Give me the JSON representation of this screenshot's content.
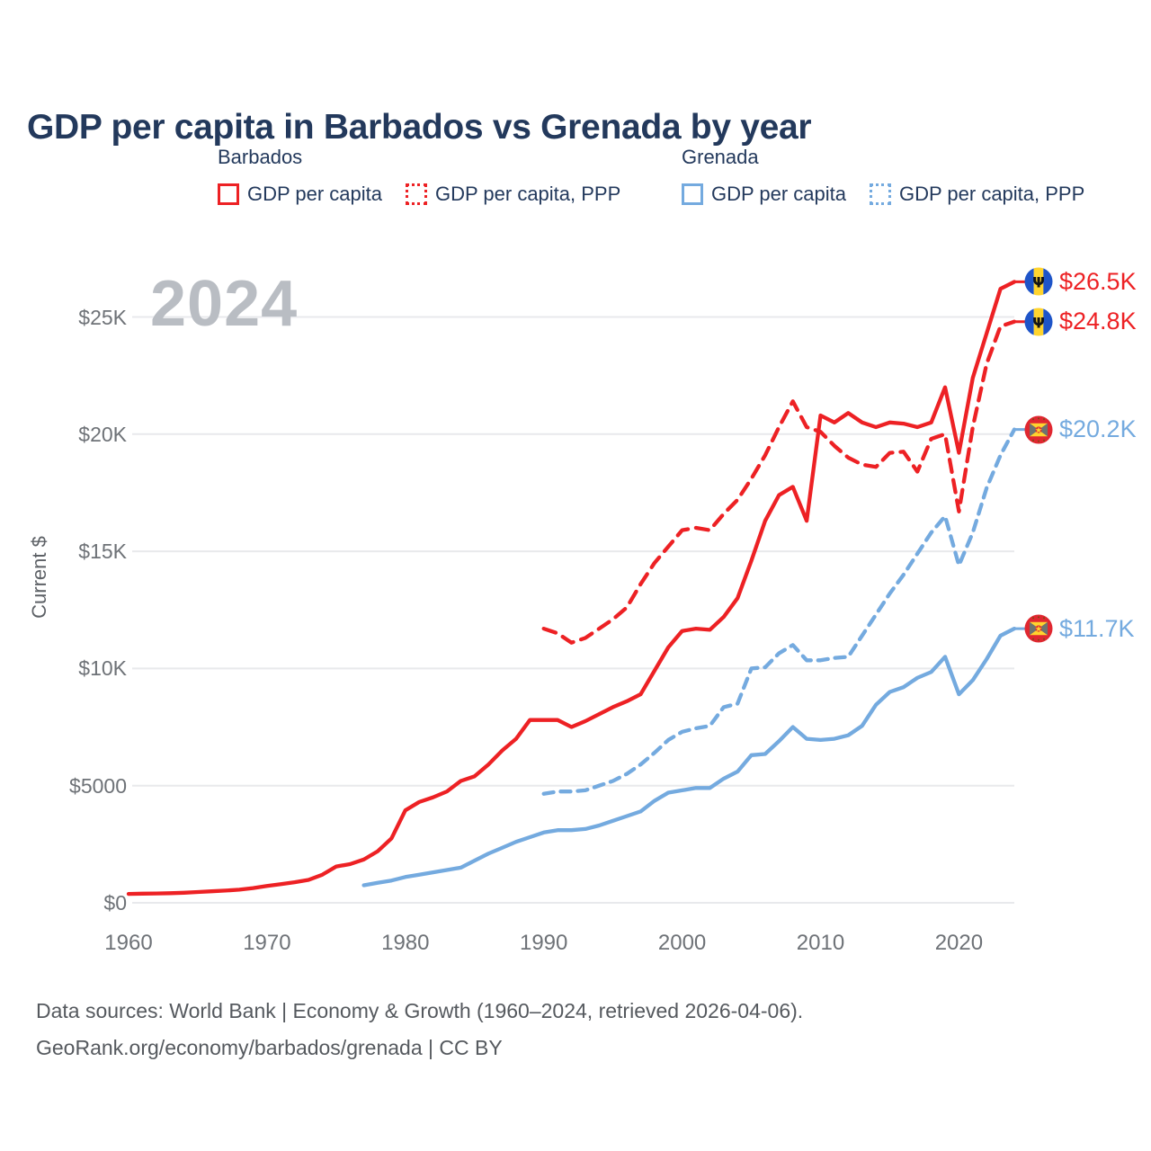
{
  "header": {
    "title": "GDP per capita in Barbados vs Grenada by year"
  },
  "watermark": "2024",
  "colors": {
    "barbados": "#ed2124",
    "grenada": "#74aadf",
    "title_text": "#23395c",
    "axis_text": "#6e7277",
    "grid": "#e8e9ec",
    "watermark": "#b9bdc3",
    "footer_text": "#55595e"
  },
  "legend": {
    "groups": [
      {
        "country": "Barbados",
        "items": [
          {
            "label": "GDP per capita",
            "swatch_class": "swatch red solid"
          },
          {
            "label": "GDP per capita, PPP",
            "swatch_class": "swatch red dotted"
          }
        ]
      },
      {
        "country": "Grenada",
        "items": [
          {
            "label": "GDP per capita",
            "swatch_class": "swatch blue solid"
          },
          {
            "label": "GDP per capita, PPP",
            "swatch_class": "swatch blue dotted"
          }
        ]
      }
    ]
  },
  "chart_data": {
    "type": "line",
    "title": "GDP per capita in Barbados vs Grenada by year",
    "xlabel": "",
    "ylabel": "Current $",
    "grid": "horizontal",
    "xlim": [
      1959.5,
      2025
    ],
    "ylim": [
      0,
      27400
    ],
    "x_ticks": [
      1960,
      1970,
      1980,
      1990,
      2000,
      2010,
      2020
    ],
    "y_ticks": [
      {
        "value": 0,
        "label": "$0"
      },
      {
        "value": 5000,
        "label": "$5000"
      },
      {
        "value": 10000,
        "label": "$10K"
      },
      {
        "value": 15000,
        "label": "$15K"
      },
      {
        "value": 20000,
        "label": "$20K"
      },
      {
        "value": 25000,
        "label": "$25K"
      }
    ],
    "series": [
      {
        "name": "grenada_gdp_per_capita_ppp",
        "legend": "Grenada GDP per capita, PPP",
        "color": "#74aadf",
        "dash": "dashed",
        "start_year": 1990,
        "values": [
          4650,
          4750,
          4750,
          4800,
          5000,
          5200,
          5500,
          5900,
          6400,
          6950,
          7300,
          7450,
          7550,
          8350,
          8500,
          10000,
          10050,
          10650,
          11000,
          10350,
          10350,
          10450,
          10500,
          11400,
          12300,
          13200,
          14000,
          14900,
          15800,
          16500,
          14400,
          15800,
          17700,
          19100,
          20200
        ]
      },
      {
        "name": "grenada_gdp_per_capita",
        "legend": "Grenada GDP per capita",
        "color": "#74aadf",
        "dash": "solid",
        "start_year": 1977,
        "values": [
          750,
          850,
          950,
          1100,
          1200,
          1300,
          1400,
          1500,
          1800,
          2100,
          2350,
          2600,
          2800,
          3000,
          3100,
          3100,
          3150,
          3300,
          3500,
          3700,
          3900,
          4350,
          4700,
          4800,
          4900,
          4900,
          5300,
          5600,
          6300,
          6350,
          6900,
          7500,
          7000,
          6950,
          7000,
          7150,
          7550,
          8450,
          9000,
          9200,
          9600,
          9850,
          10500,
          8900,
          9500,
          10400,
          11400,
          11700
        ]
      },
      {
        "name": "barbados_gdp_per_capita_ppp",
        "legend": "Barbados GDP per capita, PPP",
        "color": "#ed2124",
        "dash": "dashed",
        "start_year": 1990,
        "values": [
          11700,
          11500,
          11100,
          11300,
          11700,
          12100,
          12600,
          13600,
          14500,
          15200,
          15900,
          16000,
          15900,
          16600,
          17200,
          18100,
          19100,
          20300,
          21400,
          20300,
          20100,
          19500,
          19000,
          18700,
          18600,
          19200,
          19250,
          18400,
          19800,
          20000,
          16700,
          20300,
          23000,
          24600,
          24800
        ]
      },
      {
        "name": "barbados_gdp_per_capita",
        "legend": "Barbados GDP per capita",
        "color": "#ed2124",
        "dash": "solid",
        "start_year": 1960,
        "values": [
          380,
          390,
          400,
          410,
          430,
          460,
          490,
          520,
          560,
          630,
          720,
          800,
          880,
          980,
          1200,
          1550,
          1650,
          1850,
          2200,
          2750,
          3950,
          4300,
          4500,
          4750,
          5200,
          5400,
          5900,
          6500,
          7000,
          7800,
          7800,
          7800,
          7500,
          7750,
          8050,
          8350,
          8600,
          8900,
          9900,
          10900,
          11600,
          11700,
          11650,
          12200,
          13000,
          14600,
          16300,
          17400,
          17750,
          16300,
          20800,
          20500,
          20900,
          20500,
          20300,
          20500,
          20450,
          20300,
          20500,
          22000,
          19200,
          22400,
          24300,
          26200,
          26500
        ]
      }
    ],
    "end_labels": [
      {
        "text": "$26.5K",
        "value": 26500,
        "flag": "barbados",
        "color": "#ed2124",
        "series": "barbados_gdp_per_capita"
      },
      {
        "text": "$24.8K",
        "value": 24800,
        "flag": "barbados",
        "color": "#ed2124",
        "series": "barbados_gdp_per_capita_ppp"
      },
      {
        "text": "$20.2K",
        "value": 20200,
        "flag": "grenada",
        "color": "#74aadf",
        "series": "grenada_gdp_per_capita_ppp"
      },
      {
        "text": "$11.7K",
        "value": 11700,
        "flag": "grenada",
        "color": "#74aadf",
        "series": "grenada_gdp_per_capita"
      }
    ]
  },
  "footer": {
    "line1": "Data sources: World Bank | Economy & Growth (1960–2024, retrieved 2026-04-06).",
    "line2": "GeoRank.org/economy/barbados/grenada | CC BY"
  }
}
